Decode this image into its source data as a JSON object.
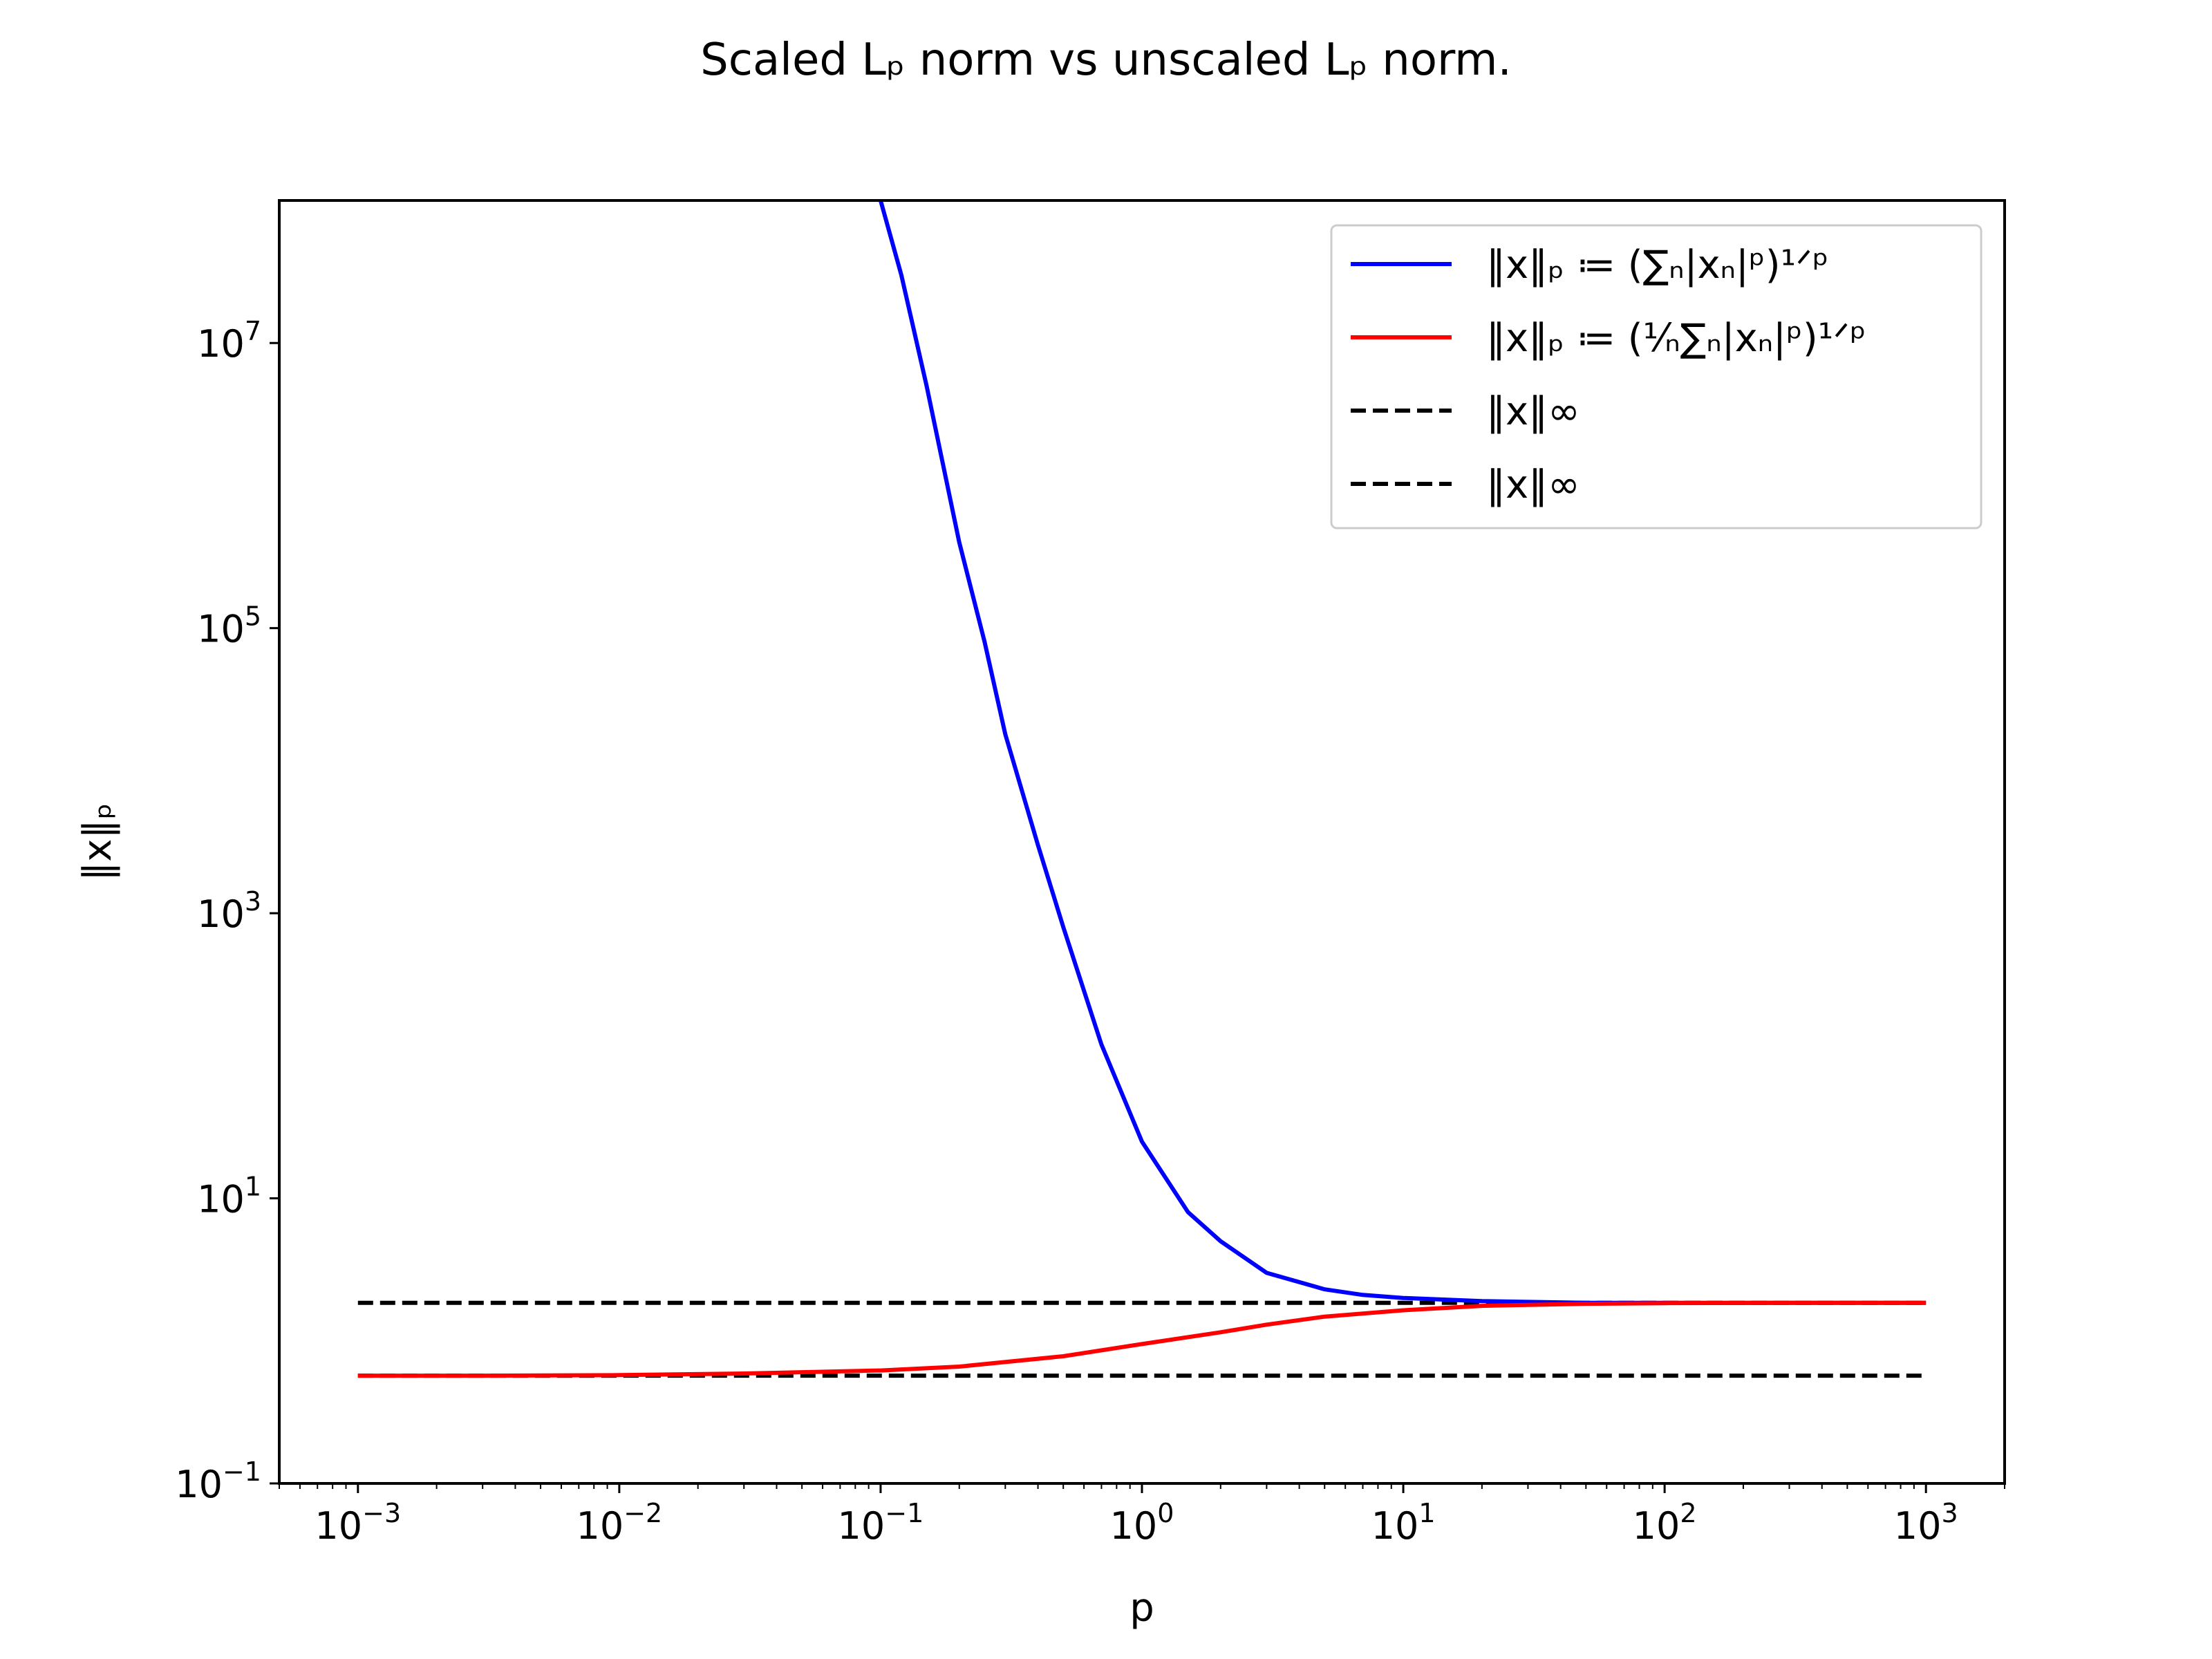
{
  "chart_data": {
    "type": "line",
    "title": "Scaled Lₚ norm vs unscaled Lₚ norm.",
    "xlabel": "p",
    "ylabel": "‖x‖ₚ",
    "xscale": "log",
    "yscale": "log",
    "xlim": [
      0.0005,
      2000
    ],
    "ylim": [
      0.1,
      100000000
    ],
    "x_ticks": [
      {
        "base": "10",
        "exp": "−3"
      },
      {
        "base": "10",
        "exp": "−2"
      },
      {
        "base": "10",
        "exp": "−1"
      },
      {
        "base": "10",
        "exp": "0"
      },
      {
        "base": "10",
        "exp": "1"
      },
      {
        "base": "10",
        "exp": "2"
      },
      {
        "base": "10",
        "exp": "3"
      }
    ],
    "y_ticks": [
      {
        "base": "10",
        "exp": "−1"
      },
      {
        "base": "10",
        "exp": "1"
      },
      {
        "base": "10",
        "exp": "3"
      },
      {
        "base": "10",
        "exp": "5"
      },
      {
        "base": "10",
        "exp": "7"
      }
    ],
    "grid": false,
    "legend_position": "top-right",
    "series": [
      {
        "name": "‖x‖ₚ ≔ (∑ₙ|xₙ|ᵖ)¹ᐟᵖ",
        "color": "#0000ff",
        "style": "solid",
        "x": [
          0.1,
          0.12,
          0.15,
          0.2,
          0.25,
          0.3,
          0.4,
          0.5,
          0.7,
          1,
          1.5,
          2,
          3,
          5,
          7,
          10,
          20,
          50,
          100,
          300,
          1000
        ],
        "y": [
          100000000,
          30000000,
          5000000,
          400000,
          80000,
          18000,
          3000,
          800,
          120,
          25,
          8,
          5,
          3,
          2.3,
          2.1,
          2.0,
          1.9,
          1.85,
          1.85,
          1.85,
          1.85
        ]
      },
      {
        "name": "‖x‖ₚ ≔ (⅟ₙ∑ₙ|xₙ|ᵖ)¹ᐟᵖ",
        "color": "#ff0000",
        "style": "solid",
        "x": [
          0.001,
          0.003,
          0.01,
          0.03,
          0.1,
          0.2,
          0.5,
          1,
          2,
          3,
          5,
          10,
          20,
          50,
          100,
          300,
          1000
        ],
        "y": [
          0.57,
          0.57,
          0.575,
          0.59,
          0.62,
          0.66,
          0.78,
          0.95,
          1.15,
          1.3,
          1.48,
          1.64,
          1.76,
          1.82,
          1.84,
          1.85,
          1.85
        ]
      },
      {
        "name": "‖x‖∞",
        "color": "#000000",
        "style": "dashed",
        "x": [
          0.001,
          1000
        ],
        "y": [
          1.85,
          1.85
        ]
      },
      {
        "name": "‖x‖∞",
        "color": "#000000",
        "style": "dashed",
        "x": [
          0.001,
          1000
        ],
        "y": [
          0.57,
          0.57
        ]
      }
    ]
  }
}
